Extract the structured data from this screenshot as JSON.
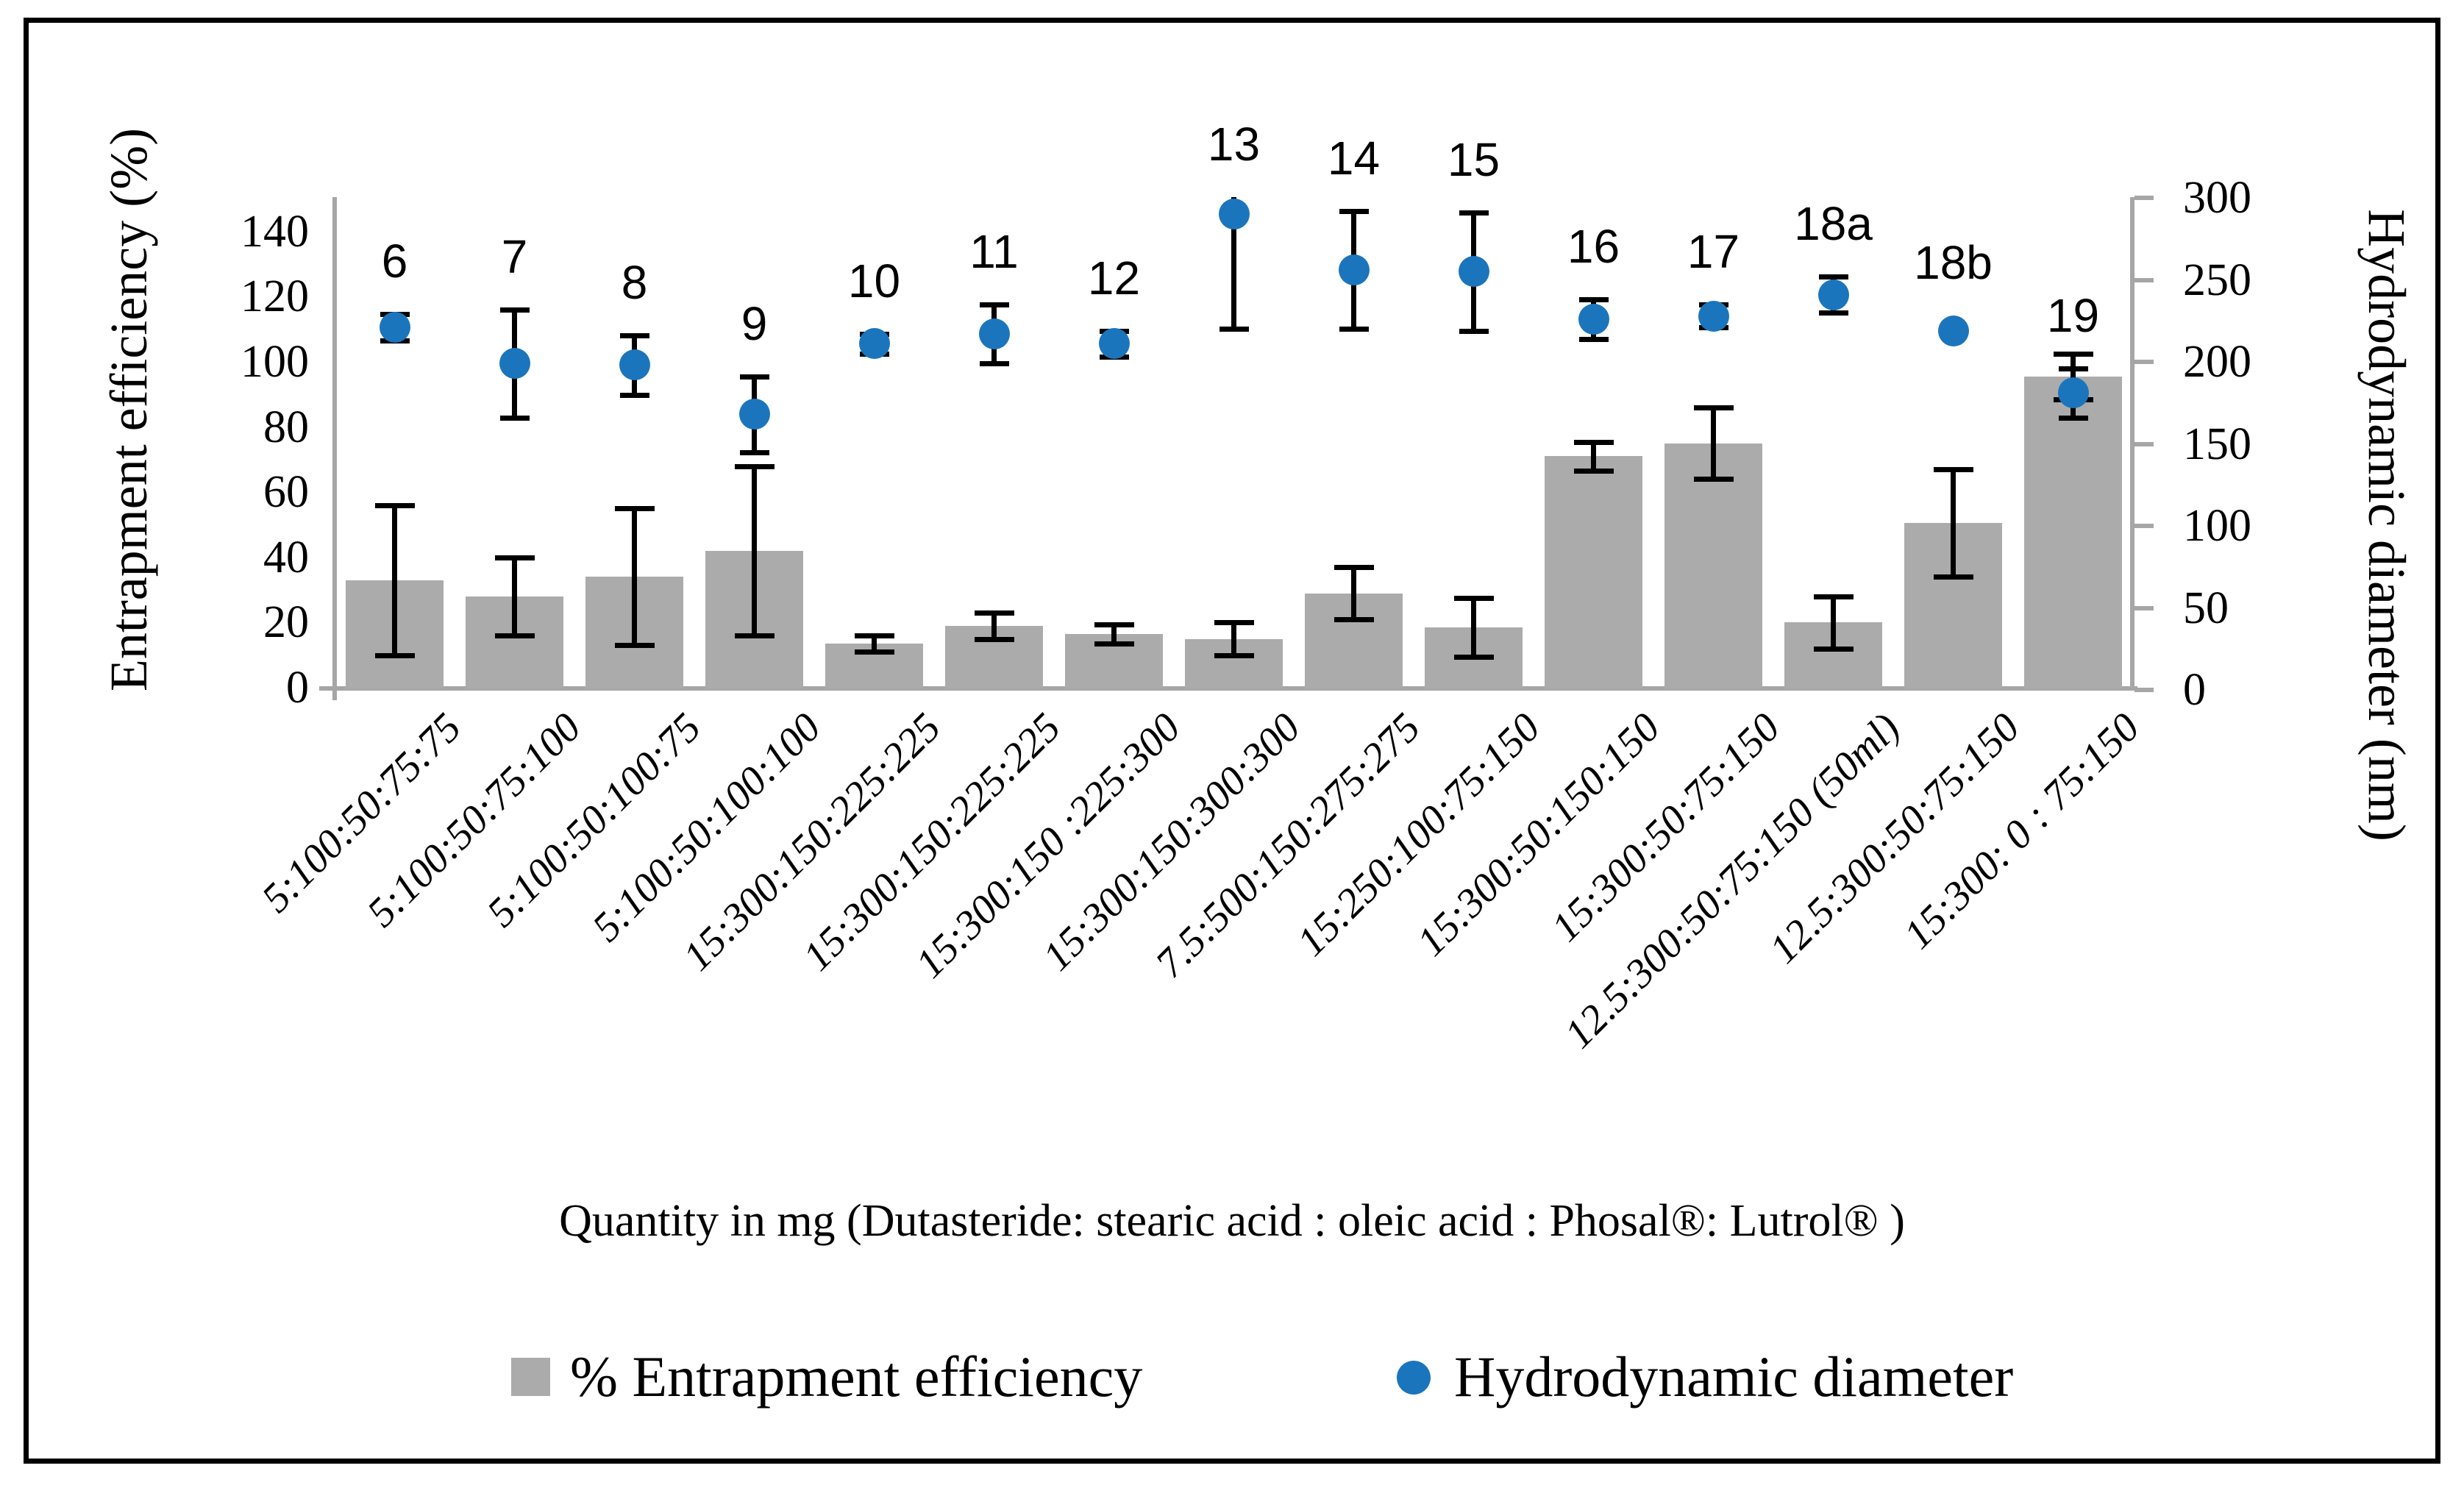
{
  "chart_data": {
    "type": "combo-bar-scatter",
    "title": "",
    "categories": [
      "5:100:50:75:75",
      "5:100:50:75:100",
      "5:100:50:100:75",
      "5:100:50:100:100",
      "15:300:150:225:225",
      "15:300:150:225:225",
      "15:300:150 :225:300",
      "15:300:150:300:300",
      "7.5:500:150:275:275",
      "15:250:100:75:150",
      "15:300:50:150:150",
      "15:300:50:75:150",
      "12.5:300:50:75:150 (50ml)",
      "12.5:300:50:75:150",
      "15:300: 0 : 75:150"
    ],
    "point_labels": [
      "6",
      "7",
      "8",
      "9",
      "10",
      "11",
      "12",
      "13",
      "14",
      "15",
      "16",
      "17",
      "18a",
      "18b",
      "19"
    ],
    "series": [
      {
        "name": "% Entrapment efficiency",
        "type": "bar",
        "axis": "left",
        "color": "#ababab",
        "values": [
          33,
          28,
          34,
          42,
          13.5,
          19,
          16.5,
          15,
          29,
          18.5,
          71,
          75,
          20,
          50.5,
          95.5
        ],
        "errors": [
          23,
          12,
          21,
          26,
          2.5,
          4,
          3,
          5,
          8,
          9,
          4.5,
          11,
          8,
          16.5,
          7
        ]
      },
      {
        "name": "Hydrodynamic diameter",
        "type": "scatter",
        "axis": "right",
        "color": "#1b75bc",
        "values": [
          221,
          199,
          198,
          168,
          211,
          217,
          211,
          290,
          256,
          255,
          226,
          228,
          241,
          219,
          181
        ],
        "errors": [
          8,
          33,
          18,
          23,
          6,
          18,
          8,
          70,
          36,
          36,
          12,
          7,
          11,
          0,
          15
        ]
      }
    ],
    "left_axis": {
      "title": "Entrapment efficiency (%)",
      "min": 0,
      "max": 140,
      "step": 20,
      "ticks": [
        "0",
        "20",
        "40",
        "60",
        "80",
        "100",
        "120",
        "140"
      ]
    },
    "right_axis": {
      "title": "Hydrodynamic diameter (nm)",
      "min": 0,
      "max": 300,
      "step": 50,
      "ticks": [
        "0",
        "50",
        "100",
        "150",
        "200",
        "250",
        "300"
      ]
    },
    "xlabel": "Quantity in mg (Dutasteride: stearic acid : oleic acid : Phosal®: Lutrol® )",
    "legend": [
      {
        "label": "% Entrapment efficiency",
        "marker": "square",
        "color": "#ababab"
      },
      {
        "label": "Hydrodynamic diameter",
        "marker": "circle",
        "color": "#1b75bc"
      }
    ],
    "grid": false,
    "legend_position": "bottom",
    "colors": {
      "bar": "#ababab",
      "dot": "#1b75bc",
      "axis": "#a6a6a6",
      "text": "#000000"
    }
  }
}
